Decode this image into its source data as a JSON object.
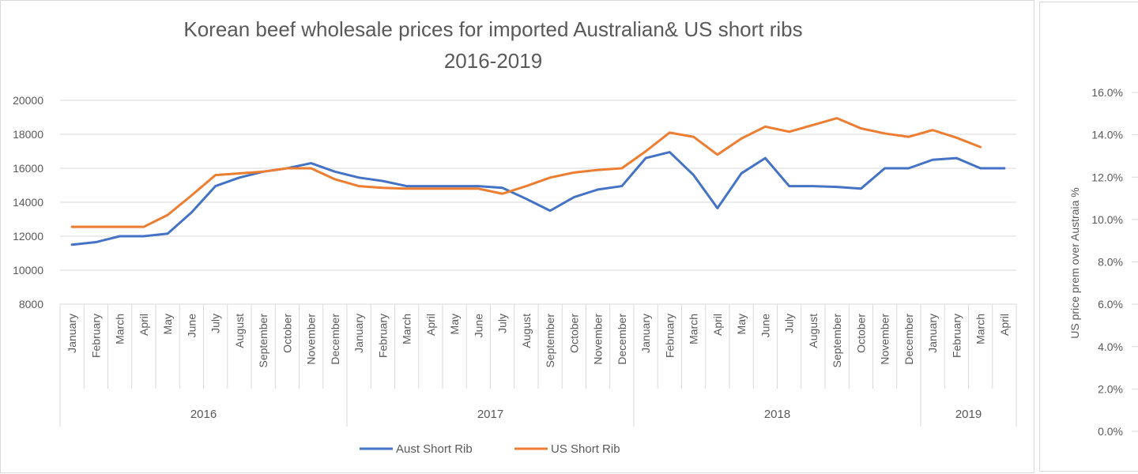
{
  "chart_data": [
    {
      "type": "line",
      "title": [
        "Korean beef wholesale prices for imported Australian& US short ribs",
        "2016-2019"
      ],
      "ylim": [
        8000,
        20000
      ],
      "yticks": [
        "8000",
        "10000",
        "12000",
        "14000",
        "16000",
        "18000",
        "20000"
      ],
      "grid": true,
      "legend_position": "bottom",
      "groups": [
        {
          "label": "2016",
          "months": [
            "January",
            "February",
            "March",
            "April",
            "May",
            "June",
            "July",
            "August",
            "September",
            "October",
            "November",
            "December"
          ]
        },
        {
          "label": "2017",
          "months": [
            "January",
            "February",
            "March",
            "April",
            "May",
            "June",
            "July",
            "August",
            "September",
            "October",
            "November",
            "December"
          ]
        },
        {
          "label": "2018",
          "months": [
            "January",
            "February",
            "March",
            "April",
            "May",
            "June",
            "July",
            "August",
            "September",
            "October",
            "November",
            "December"
          ]
        },
        {
          "label": "2019",
          "months": [
            "January",
            "February",
            "March",
            "April"
          ]
        }
      ],
      "series": [
        {
          "name": "Aust Short Rib",
          "color": "#4472c4",
          "values": [
            11500,
            11650,
            12000,
            12000,
            12150,
            13400,
            14950,
            15450,
            15800,
            16000,
            16300,
            15800,
            15450,
            15250,
            14950,
            14950,
            14950,
            14950,
            14850,
            14200,
            13500,
            14300,
            14750,
            14950,
            16600,
            16950,
            15600,
            13650,
            15700,
            16600,
            14950,
            14950,
            14900,
            14800,
            16000,
            16000,
            16500,
            16600,
            16000,
            16000
          ]
        },
        {
          "name": "US Short Rib",
          "color": "#ed7d31",
          "values": [
            12550,
            12550,
            12550,
            12550,
            13250,
            14400,
            15600,
            15700,
            15800,
            16000,
            16000,
            15350,
            14950,
            14850,
            14800,
            14800,
            14800,
            14800,
            14500,
            14950,
            15450,
            15750,
            15900,
            16000,
            17000,
            18100,
            17850,
            16800,
            17750,
            18450,
            18150,
            18550,
            18950,
            18350,
            18050,
            17850,
            18250,
            17800,
            17250,
            null
          ]
        }
      ]
    },
    {
      "type": "line",
      "title": "",
      "ylabel": "US price prem over Austraia %",
      "ylim": [
        0,
        16
      ],
      "yticks": [
        "0.0%",
        "2.0%",
        "4.0%",
        "6.0%",
        "8.0%",
        "10.0%",
        "12.0%",
        "14.0%",
        "16.0%"
      ],
      "grid": true
    }
  ],
  "colors": {
    "grid": "#d9d9d9",
    "text": "#595959",
    "border": "#d9d9d9"
  }
}
